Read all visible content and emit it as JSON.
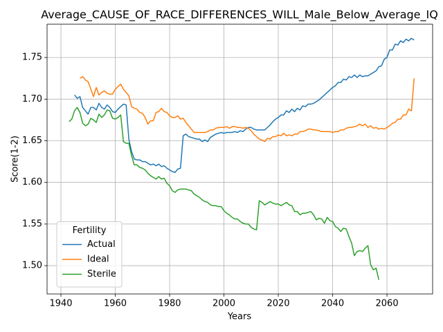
{
  "chart_data": {
    "type": "line",
    "title": "Average_CAUSE_OF_RACE_DIFFERENCES_WILL_Male_Below_Average_IQ",
    "xlabel": "Years",
    "ylabel": "Score(1-2)",
    "legend_title": "Fertility",
    "legend_loc": "lower left",
    "grid": true,
    "xlim": [
      1934.9,
      2076.8
    ],
    "ylim": [
      1.466,
      1.79
    ],
    "xticks": [
      1940,
      1960,
      1980,
      2000,
      2020,
      2040,
      2060
    ],
    "yticks": [
      {
        "value": 1.5,
        "label": "1.50"
      },
      1.55,
      {
        "value": 1.6,
        "label": "1.60"
      },
      1.65,
      {
        "value": 1.7,
        "label": "1.70"
      },
      1.75
    ],
    "x": [
      1943,
      1944,
      1945,
      1946,
      1947,
      1948,
      1949,
      1950,
      1951,
      1952,
      1953,
      1954,
      1955,
      1956,
      1957,
      1958,
      1959,
      1960,
      1961,
      1962,
      1963,
      1964,
      1965,
      1966,
      1967,
      1968,
      1969,
      1970,
      1971,
      1972,
      1973,
      1974,
      1975,
      1976,
      1977,
      1978,
      1979,
      1980,
      1981,
      1982,
      1983,
      1984,
      1985,
      1986,
      1987,
      1988,
      1989,
      1990,
      1991,
      1992,
      1993,
      1994,
      1995,
      1996,
      1997,
      1998,
      1999,
      2000,
      2001,
      2002,
      2003,
      2004,
      2005,
      2006,
      2007,
      2008,
      2009,
      2010,
      2011,
      2012,
      2013,
      2014,
      2015,
      2016,
      2017,
      2018,
      2019,
      2020,
      2021,
      2022,
      2023,
      2024,
      2025,
      2026,
      2027,
      2028,
      2029,
      2030,
      2031,
      2032,
      2033,
      2034,
      2035,
      2036,
      2037,
      2038,
      2039,
      2040,
      2041,
      2042,
      2043,
      2044,
      2045,
      2046,
      2047,
      2048,
      2049,
      2050,
      2051,
      2052,
      2053,
      2054,
      2055,
      2056,
      2057,
      2058,
      2059,
      2060,
      2061,
      2062,
      2063,
      2064,
      2065,
      2066,
      2067,
      2068,
      2069,
      2070
    ],
    "series": [
      {
        "name": "Actual",
        "color": "#1f77b4",
        "values": [
          null,
          null,
          1.705,
          1.701,
          1.703,
          1.69,
          1.686,
          1.682,
          1.69,
          1.69,
          1.687,
          1.695,
          1.69,
          1.688,
          1.693,
          1.69,
          1.685,
          1.684,
          1.688,
          1.691,
          1.694,
          1.693,
          1.652,
          1.637,
          1.628,
          1.627,
          1.627,
          1.625,
          1.625,
          1.623,
          1.621,
          1.622,
          1.62,
          1.622,
          1.619,
          1.62,
          1.617,
          1.615,
          1.613,
          1.612,
          1.616,
          1.617,
          1.656,
          1.658,
          1.655,
          1.654,
          1.653,
          1.652,
          1.652,
          1.649,
          1.651,
          1.649,
          1.654,
          1.656,
          1.658,
          1.659,
          1.66,
          1.659,
          1.66,
          1.66,
          1.66,
          1.661,
          1.66,
          1.662,
          1.661,
          1.664,
          1.666,
          1.666,
          1.664,
          1.663,
          1.663,
          1.663,
          1.663,
          1.666,
          1.669,
          1.673,
          1.676,
          1.678,
          1.681,
          1.681,
          1.686,
          1.684,
          1.688,
          1.685,
          1.689,
          1.687,
          1.692,
          1.691,
          1.694,
          1.694,
          1.695,
          1.697,
          1.699,
          1.702,
          1.705,
          1.708,
          1.711,
          1.714,
          1.716,
          1.72,
          1.72,
          1.724,
          1.723,
          1.727,
          1.726,
          1.729,
          1.726,
          1.729,
          1.727,
          1.728,
          1.728,
          1.73,
          1.732,
          1.734,
          1.739,
          1.74,
          1.748,
          1.75,
          1.759,
          1.759,
          1.766,
          1.765,
          1.77,
          1.768,
          1.772,
          1.77,
          1.773,
          1.771
        ]
      },
      {
        "name": "Ideal",
        "color": "#ff7f0e",
        "values": [
          null,
          null,
          null,
          null,
          1.725,
          1.727,
          1.723,
          1.721,
          1.712,
          1.703,
          1.714,
          1.705,
          1.708,
          1.71,
          1.707,
          1.706,
          1.706,
          1.712,
          1.715,
          1.718,
          1.712,
          1.708,
          1.704,
          1.691,
          1.689,
          1.688,
          1.684,
          1.683,
          1.678,
          1.67,
          1.674,
          1.674,
          1.684,
          1.685,
          1.689,
          1.685,
          1.684,
          1.68,
          1.678,
          1.678,
          1.68,
          1.676,
          1.677,
          1.672,
          1.668,
          1.664,
          1.66,
          1.66,
          1.66,
          1.66,
          1.66,
          1.661,
          1.663,
          1.663,
          1.665,
          1.666,
          1.666,
          1.666,
          1.667,
          1.665,
          1.667,
          1.667,
          1.666,
          1.666,
          1.665,
          1.666,
          1.665,
          1.662,
          1.658,
          1.655,
          1.652,
          1.651,
          1.649,
          1.653,
          1.652,
          1.655,
          1.655,
          1.657,
          1.656,
          1.659,
          1.656,
          1.657,
          1.656,
          1.658,
          1.658,
          1.661,
          1.661,
          1.662,
          1.664,
          1.664,
          1.663,
          1.663,
          1.662,
          1.661,
          1.661,
          1.661,
          1.661,
          1.66,
          1.661,
          1.661,
          1.663,
          1.663,
          1.665,
          1.666,
          1.666,
          1.667,
          1.668,
          1.67,
          1.668,
          1.67,
          1.666,
          1.668,
          1.665,
          1.666,
          1.664,
          1.665,
          1.664,
          1.666,
          1.668,
          1.671,
          1.672,
          1.676,
          1.676,
          1.681,
          1.681,
          1.688,
          1.686,
          1.725
        ]
      },
      {
        "name": "Sterile",
        "color": "#2ca02c",
        "values": [
          1.673,
          1.676,
          1.686,
          1.69,
          1.684,
          1.671,
          1.668,
          1.67,
          1.677,
          1.675,
          1.672,
          1.682,
          1.678,
          1.681,
          1.687,
          1.686,
          1.677,
          1.676,
          1.678,
          1.681,
          1.649,
          1.647,
          1.647,
          1.632,
          1.621,
          1.621,
          1.618,
          1.617,
          1.615,
          1.611,
          1.608,
          1.606,
          1.604,
          1.607,
          1.604,
          1.605,
          1.599,
          1.596,
          1.59,
          1.588,
          1.591,
          1.592,
          1.592,
          1.592,
          1.591,
          1.59,
          1.586,
          1.584,
          1.582,
          1.579,
          1.577,
          1.576,
          1.573,
          1.572,
          1.572,
          1.571,
          1.571,
          1.566,
          1.563,
          1.561,
          1.558,
          1.556,
          1.556,
          1.553,
          1.551,
          1.55,
          1.55,
          1.546,
          1.544,
          1.543,
          1.578,
          1.576,
          1.573,
          1.575,
          1.577,
          1.575,
          1.574,
          1.574,
          1.572,
          1.574,
          1.576,
          1.573,
          1.572,
          1.565,
          1.565,
          1.561,
          1.563,
          1.563,
          1.564,
          1.565,
          1.561,
          1.555,
          1.557,
          1.556,
          1.551,
          1.558,
          1.554,
          1.553,
          1.547,
          1.545,
          1.541,
          1.545,
          1.544,
          1.535,
          1.527,
          1.512,
          1.517,
          1.518,
          1.517,
          1.521,
          1.524,
          1.501,
          1.495,
          1.497,
          1.483,
          null,
          null,
          null,
          null,
          null,
          null,
          null,
          null,
          null,
          null,
          null,
          null,
          null
        ]
      }
    ]
  }
}
